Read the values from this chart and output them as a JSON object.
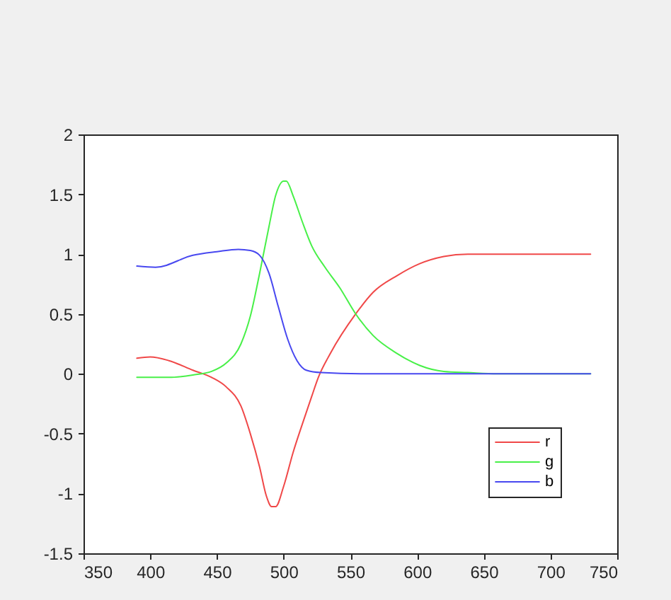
{
  "chart_data": {
    "type": "line",
    "series": [
      {
        "name": "r",
        "color": "#f04848",
        "x": [
          390,
          400,
          414,
          432,
          446,
          457,
          468,
          475,
          482,
          487,
          491,
          494,
          500,
          507,
          514,
          521,
          526,
          535,
          554,
          567,
          585,
          602,
          620,
          638,
          673,
          730
        ],
        "values": [
          0.13,
          0.14,
          0.11,
          0.03,
          -0.03,
          -0.11,
          -0.27,
          -0.5,
          -0.78,
          -1.02,
          -1.11,
          -1.11,
          -0.94,
          -0.66,
          -0.42,
          -0.19,
          -0.03,
          0.17,
          0.5,
          0.68,
          0.82,
          0.92,
          0.98,
          1.0,
          1.0,
          1.0
        ]
      },
      {
        "name": "g",
        "color": "#48f048",
        "x": [
          390,
          414,
          432,
          446,
          457,
          468,
          475,
          482,
          489,
          494,
          500,
          502,
          507,
          514,
          521,
          531,
          542,
          554,
          567,
          585,
          602,
          620,
          638,
          660,
          730
        ],
        "values": [
          -0.03,
          -0.03,
          -0.01,
          0.02,
          0.09,
          0.25,
          0.48,
          0.84,
          1.23,
          1.49,
          1.61,
          1.61,
          1.49,
          1.27,
          1.07,
          0.89,
          0.72,
          0.5,
          0.32,
          0.17,
          0.07,
          0.02,
          0.01,
          0,
          0
        ]
      },
      {
        "name": "b",
        "color": "#4848f0",
        "x": [
          390,
          404,
          432,
          450,
          466,
          475,
          482,
          489,
          496,
          503,
          510,
          517,
          528,
          560,
          730
        ],
        "values": [
          0.9,
          0.89,
          0.99,
          1.02,
          1.04,
          1.03,
          0.99,
          0.84,
          0.56,
          0.29,
          0.11,
          0.03,
          0.01,
          0,
          0
        ]
      }
    ],
    "xlim": [
      350,
      750
    ],
    "xticks": [
      350,
      400,
      450,
      500,
      550,
      600,
      650,
      700,
      750
    ],
    "ylim": [
      -1.5,
      2
    ],
    "yticks": [
      -1.5,
      -1,
      -0.5,
      0,
      0.5,
      1,
      1.5,
      2
    ],
    "legend": "bottom right",
    "grid": false
  }
}
